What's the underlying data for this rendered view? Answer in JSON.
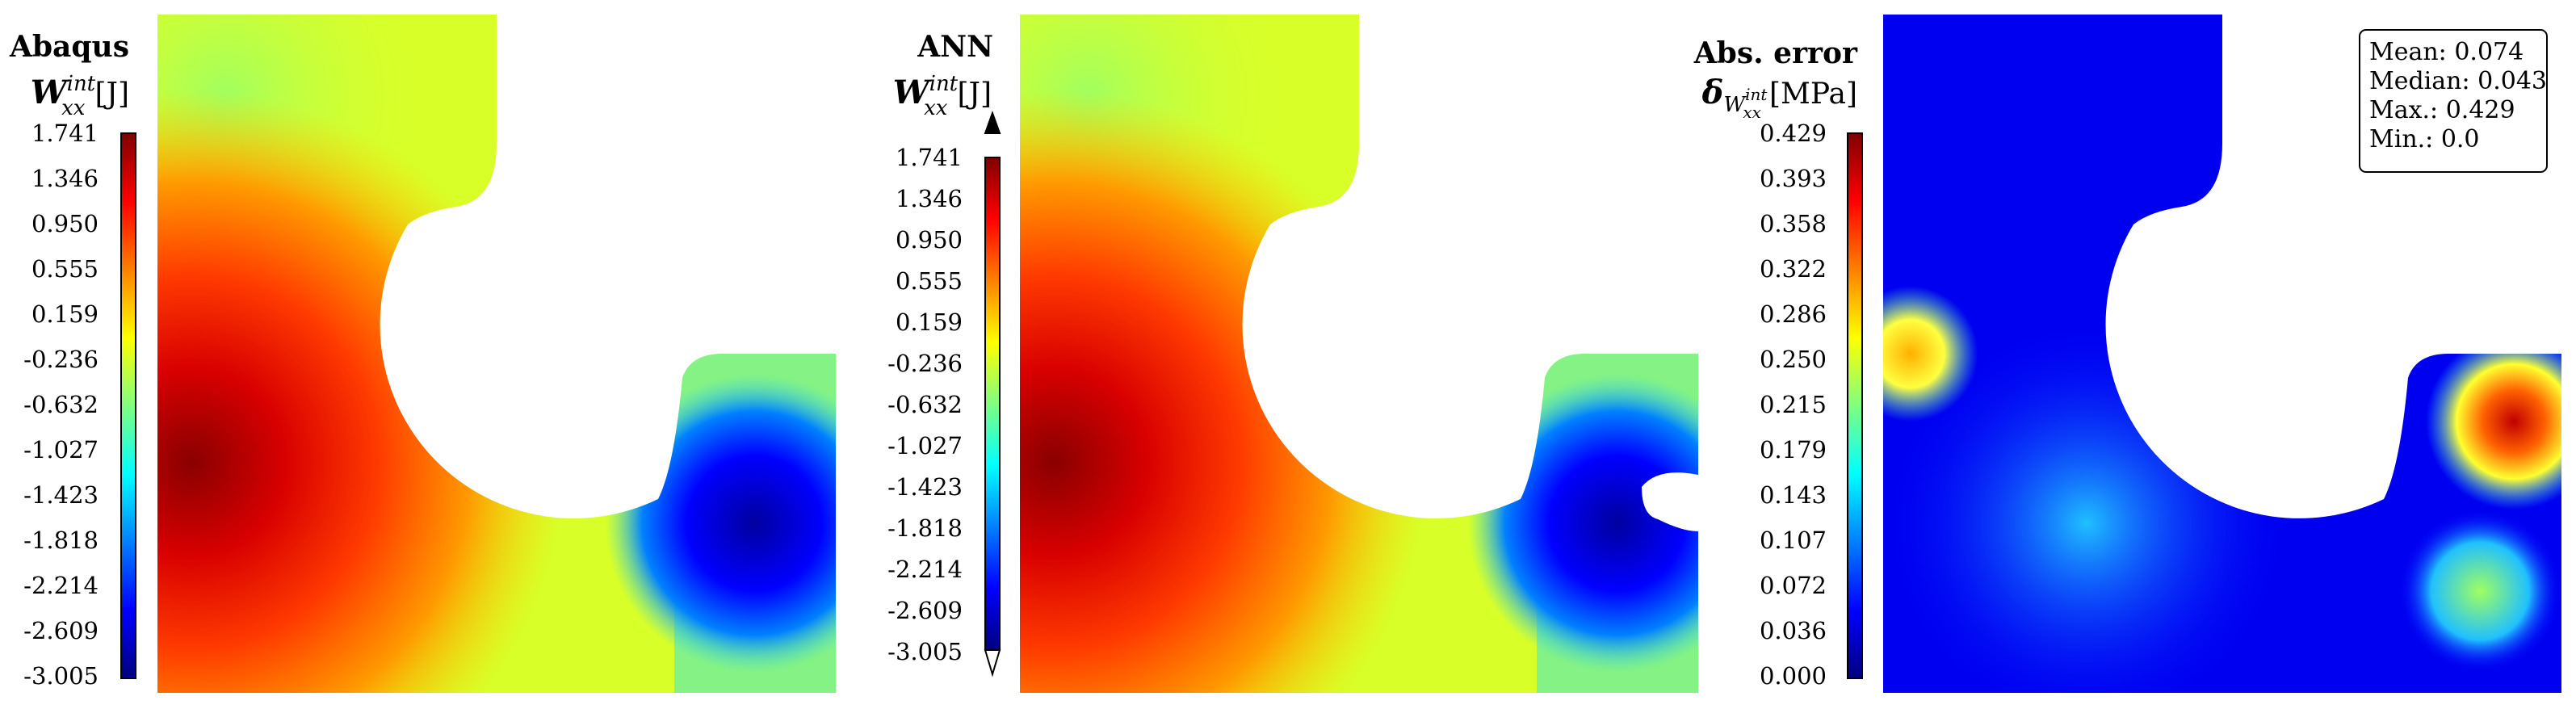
{
  "panels": [
    {
      "title": "Abaqus",
      "symbol": "W",
      "symbol_sup": "int",
      "symbol_sub": "xx",
      "unit": "[J]",
      "colorbar_ticks": [
        "1.741",
        "1.346",
        "0.950",
        "0.555",
        "0.159",
        "-0.236",
        "-0.632",
        "-1.027",
        "-1.423",
        "-1.818",
        "-2.214",
        "-2.609",
        "-3.005"
      ],
      "colorbar_style": "plain"
    },
    {
      "title": "ANN",
      "symbol": "W",
      "symbol_sup": "int",
      "symbol_sub": "xx",
      "unit": "[J]",
      "colorbar_ticks": [
        "1.741",
        "1.346",
        "0.950",
        "0.555",
        "0.159",
        "-0.236",
        "-0.632",
        "-1.027",
        "-1.423",
        "-1.818",
        "-2.214",
        "-2.609",
        "-3.005"
      ],
      "colorbar_style": "arrows"
    },
    {
      "title": "Abs. error",
      "symbol": "δ",
      "symbol_sub_base": "W",
      "symbol_sub_sup": "int",
      "symbol_sub_sub": "xx",
      "unit": "[MPa]",
      "colorbar_ticks": [
        "0.429",
        "0.393",
        "0.358",
        "0.322",
        "0.286",
        "0.250",
        "0.215",
        "0.179",
        "0.143",
        "0.107",
        "0.072",
        "0.036",
        "0.000"
      ],
      "colorbar_style": "plain",
      "stats": {
        "mean": "Mean: 0.074",
        "median": "Median: 0.043",
        "max": "Max.: 0.429",
        "min": "Min.: 0.0"
      }
    }
  ],
  "colormap": [
    "#00007f",
    "#0000ff",
    "#0080ff",
    "#00ffff",
    "#80ff80",
    "#ffff00",
    "#ff8000",
    "#ff0000",
    "#7f0000"
  ]
}
